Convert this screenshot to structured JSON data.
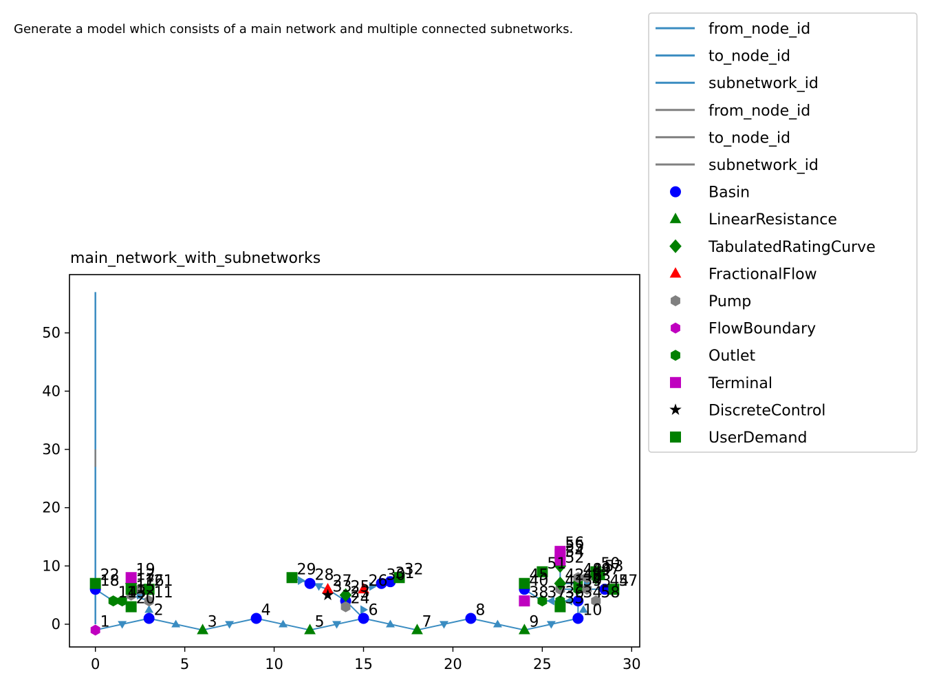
{
  "chart_data": {
    "type": "scatter",
    "title": "main_network_with_subnetworks",
    "suptitle": "Generate a model which consists of a main network and multiple connected subnetworks.",
    "xlabel": "",
    "ylabel": "",
    "xlim": [
      -1.45,
      30.45
    ],
    "ylim": [
      -3.9,
      60.0
    ],
    "xticks": [
      0,
      5,
      10,
      15,
      20,
      25,
      30
    ],
    "yticks": [
      0,
      10,
      20,
      30,
      40,
      50
    ],
    "grid": false,
    "legend_placement": "outside upper right",
    "edge_series": [
      {
        "name": "from_node_id",
        "kind": "flow",
        "color": "#3a8cc1"
      },
      {
        "name": "to_node_id",
        "kind": "flow",
        "color": "#3a8cc1"
      },
      {
        "name": "subnetwork_id",
        "kind": "flow",
        "color": "#3a8cc1"
      },
      {
        "name": "from_node_id",
        "kind": "control",
        "color": "#808080"
      },
      {
        "name": "to_node_id",
        "kind": "control",
        "color": "#808080"
      },
      {
        "name": "subnetwork_id",
        "kind": "control",
        "color": "#808080"
      }
    ],
    "node_series": [
      {
        "name": "Basin",
        "marker": "circle",
        "color": "#0000ff"
      },
      {
        "name": "LinearResistance",
        "marker": "triangle-up",
        "color": "#008000"
      },
      {
        "name": "TabulatedRatingCurve",
        "marker": "diamond",
        "color": "#008000"
      },
      {
        "name": "FractionalFlow",
        "marker": "triangle-up",
        "color": "#ff0000"
      },
      {
        "name": "Pump",
        "marker": "hexagon",
        "color": "#808080"
      },
      {
        "name": "FlowBoundary",
        "marker": "hexagon",
        "color": "#bf00bf"
      },
      {
        "name": "Outlet",
        "marker": "hexagon",
        "color": "#008000"
      },
      {
        "name": "Terminal",
        "marker": "square",
        "color": "#bf00bf"
      },
      {
        "name": "DiscreteControl",
        "marker": "star",
        "color": "#000000"
      },
      {
        "name": "UserDemand",
        "marker": "square",
        "color": "#008000"
      }
    ],
    "vertical_lines": [
      {
        "x": 0,
        "y": [
          0,
          57
        ],
        "color": "#3a8cc1"
      },
      {
        "x": 0,
        "y": [
          27,
          30
        ],
        "color": "#808080"
      }
    ],
    "nodes": [
      {
        "id": "1",
        "x": 0,
        "y": -1,
        "series": "FlowBoundary"
      },
      {
        "id": "2",
        "x": 3,
        "y": 1,
        "series": "Basin"
      },
      {
        "id": "3",
        "x": 6,
        "y": -1,
        "series": "LinearResistance"
      },
      {
        "id": "4",
        "x": 9,
        "y": 1,
        "series": "Basin"
      },
      {
        "id": "5",
        "x": 12,
        "y": -1,
        "series": "LinearResistance"
      },
      {
        "id": "6",
        "x": 15,
        "y": 1,
        "series": "Basin"
      },
      {
        "id": "7",
        "x": 18,
        "y": -1,
        "series": "LinearResistance"
      },
      {
        "id": "8",
        "x": 21,
        "y": 1,
        "series": "Basin"
      },
      {
        "id": "9",
        "x": 24,
        "y": -1,
        "series": "LinearResistance"
      },
      {
        "id": "10",
        "x": 27,
        "y": 1,
        "series": "Basin"
      },
      {
        "id": "11",
        "x": 3,
        "y": 4,
        "series": "Pump"
      },
      {
        "id": "12",
        "x": 2,
        "y": 7,
        "series": "TabulatedRatingCurve"
      },
      {
        "id": "13",
        "x": 1.5,
        "y": 4,
        "series": "Outlet"
      },
      {
        "id": "14",
        "x": 1,
        "y": 4,
        "series": "Outlet"
      },
      {
        "id": "15",
        "x": 2,
        "y": 5,
        "series": "Pump"
      },
      {
        "id": "16",
        "x": 2.5,
        "y": 6,
        "series": "Pump"
      },
      {
        "id": "17",
        "x": 2,
        "y": 6,
        "series": "UserDemand"
      },
      {
        "id": "18",
        "x": 0,
        "y": 6,
        "series": "Basin"
      },
      {
        "id": "19",
        "x": 2,
        "y": 8,
        "series": "Terminal"
      },
      {
        "id": "20",
        "x": 2,
        "y": 3,
        "series": "UserDemand"
      },
      {
        "id": "21",
        "x": 3,
        "y": 6,
        "series": "UserDemand"
      },
      {
        "id": "22",
        "x": 0,
        "y": 7,
        "series": "UserDemand"
      },
      {
        "id": "23",
        "x": 14,
        "y": 4,
        "series": "Basin"
      },
      {
        "id": "24",
        "x": 14,
        "y": 3,
        "series": "Pump"
      },
      {
        "id": "25",
        "x": 14,
        "y": 5,
        "series": "TabulatedRatingCurve"
      },
      {
        "id": "26",
        "x": 15,
        "y": 6,
        "series": "FractionalFlow"
      },
      {
        "id": "27",
        "x": 13,
        "y": 6,
        "series": "FractionalFlow"
      },
      {
        "id": "28",
        "x": 12,
        "y": 7,
        "series": "Basin"
      },
      {
        "id": "29",
        "x": 11,
        "y": 8,
        "series": "UserDemand"
      },
      {
        "id": "30",
        "x": 16,
        "y": 7,
        "series": "Basin"
      },
      {
        "id": "31",
        "x": 16.5,
        "y": 7.3,
        "series": "Basin"
      },
      {
        "id": "32",
        "x": 17,
        "y": 8,
        "series": "UserDemand"
      },
      {
        "id": "33",
        "x": 13,
        "y": 5,
        "series": "DiscreteControl"
      },
      {
        "id": "34",
        "x": 27,
        "y": 4,
        "series": "Basin"
      },
      {
        "id": "35",
        "x": 26,
        "y": 3,
        "series": "UserDemand"
      },
      {
        "id": "36",
        "x": 26,
        "y": 4,
        "series": "Outlet"
      },
      {
        "id": "37",
        "x": 25,
        "y": 4,
        "series": "Outlet"
      },
      {
        "id": "38",
        "x": 24,
        "y": 4,
        "series": "Terminal"
      },
      {
        "id": "39",
        "x": 27,
        "y": 6,
        "series": "Outlet"
      },
      {
        "id": "40",
        "x": 24,
        "y": 6,
        "series": "Basin"
      },
      {
        "id": "41",
        "x": 26,
        "y": 6,
        "series": "Pump"
      },
      {
        "id": "42",
        "x": 26,
        "y": 7,
        "series": "TabulatedRatingCurve"
      },
      {
        "id": "43",
        "x": 27.5,
        "y": 6,
        "series": "Pump"
      },
      {
        "id": "44",
        "x": 28.5,
        "y": 6,
        "series": "Basin"
      },
      {
        "id": "45",
        "x": 24,
        "y": 7,
        "series": "UserDemand"
      },
      {
        "id": "46",
        "x": 27,
        "y": 7,
        "series": "Outlet"
      },
      {
        "id": "47",
        "x": 28,
        "y": 8,
        "series": "TabulatedRatingCurve"
      },
      {
        "id": "48",
        "x": 27,
        "y": 8,
        "series": "Pump"
      },
      {
        "id": "49",
        "x": 27.5,
        "y": 8,
        "series": "Pump"
      },
      {
        "id": "50",
        "x": 28,
        "y": 9,
        "series": "UserDemand"
      },
      {
        "id": "51",
        "x": 25,
        "y": 9,
        "series": "UserDemand"
      },
      {
        "id": "52",
        "x": 26,
        "y": 10,
        "series": "TabulatedRatingCurve"
      },
      {
        "id": "53",
        "x": 28.2,
        "y": 8.5,
        "series": "UserDemand"
      },
      {
        "id": "54",
        "x": 26,
        "y": 11,
        "series": "Terminal"
      },
      {
        "id": "55",
        "x": 26,
        "y": 12,
        "series": "Terminal"
      },
      {
        "id": "56",
        "x": 26,
        "y": 12.5,
        "series": "Terminal"
      },
      {
        "id": "57",
        "x": 29,
        "y": 6,
        "series": "UserDemand"
      },
      {
        "id": "58",
        "x": 28,
        "y": 4,
        "series": "Pump"
      }
    ],
    "edges": [
      {
        "from": "1",
        "to": "2",
        "kind": "flow"
      },
      {
        "from": "2",
        "to": "3",
        "kind": "flow"
      },
      {
        "from": "3",
        "to": "4",
        "kind": "flow"
      },
      {
        "from": "4",
        "to": "5",
        "kind": "flow"
      },
      {
        "from": "5",
        "to": "6",
        "kind": "flow"
      },
      {
        "from": "6",
        "to": "7",
        "kind": "flow"
      },
      {
        "from": "7",
        "to": "8",
        "kind": "flow"
      },
      {
        "from": "8",
        "to": "9",
        "kind": "flow"
      },
      {
        "from": "9",
        "to": "10",
        "kind": "flow"
      },
      {
        "from": "18",
        "to": "14",
        "kind": "flow"
      },
      {
        "from": "14",
        "to": "13",
        "kind": "flow"
      },
      {
        "from": "13",
        "to": "15",
        "kind": "flow"
      },
      {
        "from": "15",
        "to": "11",
        "kind": "flow"
      },
      {
        "from": "11",
        "to": "2",
        "kind": "flow"
      },
      {
        "from": "15",
        "to": "16",
        "kind": "flow"
      },
      {
        "from": "16",
        "to": "21",
        "kind": "flow"
      },
      {
        "from": "28",
        "to": "27",
        "kind": "flow"
      },
      {
        "from": "27",
        "to": "23",
        "kind": "flow"
      },
      {
        "from": "23",
        "to": "6",
        "kind": "flow"
      },
      {
        "from": "26",
        "to": "30",
        "kind": "flow"
      },
      {
        "from": "30",
        "to": "31",
        "kind": "flow"
      },
      {
        "from": "29",
        "to": "28",
        "kind": "flow"
      },
      {
        "from": "40",
        "to": "37",
        "kind": "flow"
      },
      {
        "from": "37",
        "to": "36",
        "kind": "flow"
      },
      {
        "from": "36",
        "to": "34",
        "kind": "flow"
      },
      {
        "from": "34",
        "to": "10",
        "kind": "flow"
      },
      {
        "from": "41",
        "to": "39",
        "kind": "flow"
      },
      {
        "from": "39",
        "to": "44",
        "kind": "flow"
      },
      {
        "from": "52",
        "to": "42",
        "kind": "flow"
      },
      {
        "from": "42",
        "to": "46",
        "kind": "flow"
      }
    ],
    "flow_arrows": [
      {
        "x": 1.5,
        "y": 0,
        "dir": "down"
      },
      {
        "x": 4.5,
        "y": 0,
        "dir": "up"
      },
      {
        "x": 7.5,
        "y": 0,
        "dir": "down"
      },
      {
        "x": 10.5,
        "y": 0,
        "dir": "up"
      },
      {
        "x": 13.5,
        "y": 0,
        "dir": "down"
      },
      {
        "x": 16.5,
        "y": 0,
        "dir": "up"
      },
      {
        "x": 19.5,
        "y": 0,
        "dir": "down"
      },
      {
        "x": 22.5,
        "y": 0,
        "dir": "up"
      },
      {
        "x": 25.5,
        "y": 0,
        "dir": "down"
      },
      {
        "x": 3,
        "y": 2.5,
        "dir": "up"
      },
      {
        "x": 15,
        "y": 2.5,
        "dir": "right"
      },
      {
        "x": 27.3,
        "y": 2.5,
        "dir": "up"
      },
      {
        "x": 11.5,
        "y": 7.5,
        "dir": "right"
      },
      {
        "x": 12.5,
        "y": 6.5,
        "dir": "down"
      },
      {
        "x": 15.5,
        "y": 6.5,
        "dir": "right"
      },
      {
        "x": 16.5,
        "y": 7.5,
        "dir": "right"
      },
      {
        "x": 25.5,
        "y": 4,
        "dir": "left"
      },
      {
        "x": 26.5,
        "y": 4,
        "dir": "left"
      },
      {
        "x": 27.5,
        "y": 7,
        "dir": "right"
      },
      {
        "x": 1.5,
        "y": 4,
        "dir": "left"
      },
      {
        "x": 2.5,
        "y": 5,
        "dir": "right"
      }
    ]
  }
}
